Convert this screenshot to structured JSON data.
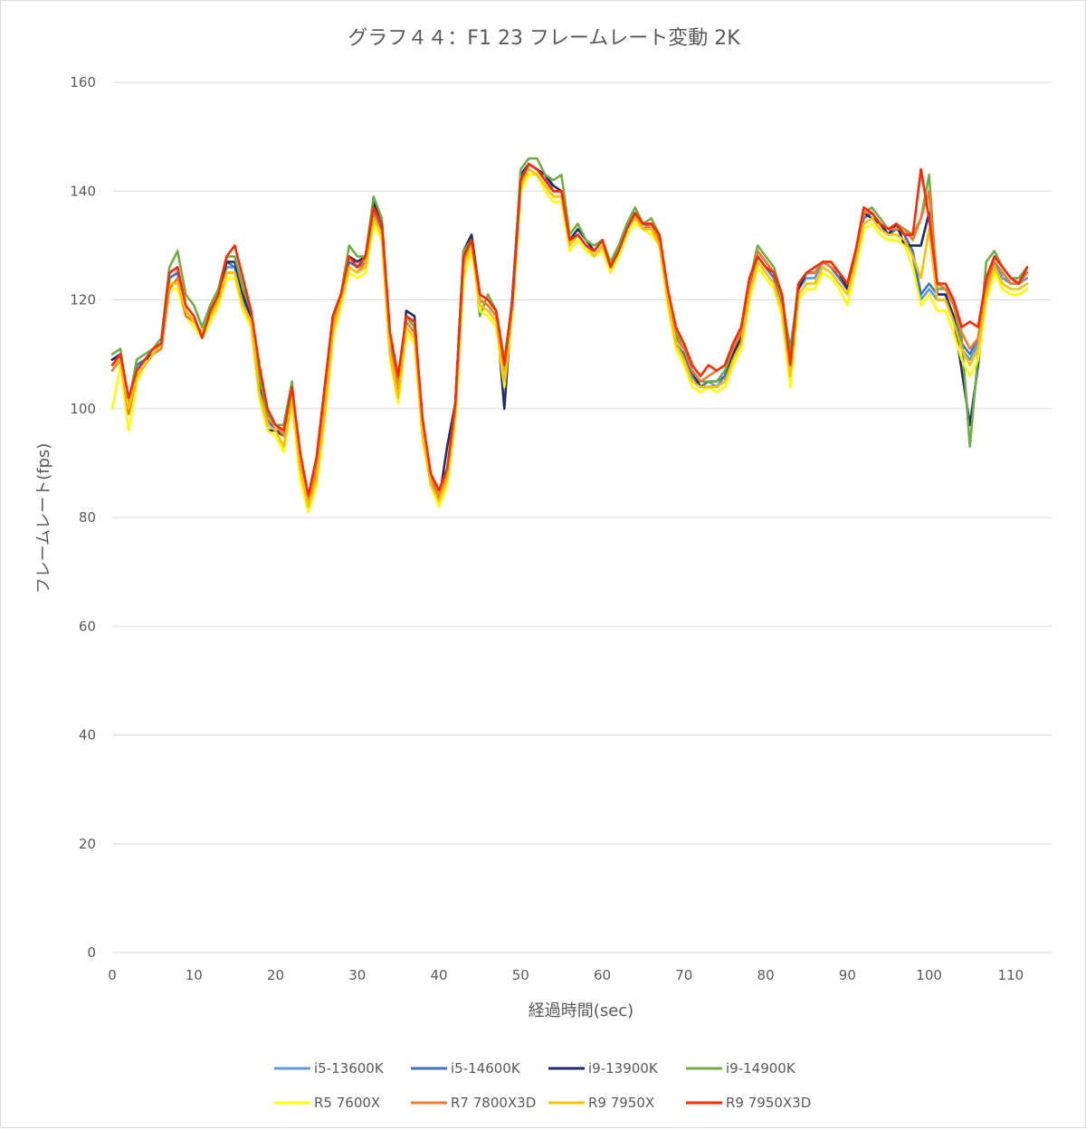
{
  "chart_data": {
    "type": "line",
    "title": "グラフ４４：F1 23 フレームレート変動 2K",
    "xlabel": "経過時間(sec)",
    "ylabel": "フレームレート(fps)",
    "xlim": [
      0,
      115
    ],
    "ylim": [
      0,
      160
    ],
    "x_ticks": [
      0,
      10,
      20,
      30,
      40,
      50,
      60,
      70,
      80,
      90,
      100,
      110
    ],
    "y_ticks": [
      0,
      20,
      40,
      60,
      80,
      100,
      120,
      140,
      160
    ],
    "grid": "horizontal",
    "legend_position": "bottom",
    "x": [
      0,
      1,
      2,
      3,
      4,
      5,
      6,
      7,
      8,
      9,
      10,
      11,
      12,
      13,
      14,
      15,
      16,
      17,
      18,
      19,
      20,
      21,
      22,
      23,
      24,
      25,
      26,
      27,
      28,
      29,
      30,
      31,
      32,
      33,
      34,
      35,
      36,
      37,
      38,
      39,
      40,
      41,
      42,
      43,
      44,
      45,
      46,
      47,
      48,
      49,
      50,
      51,
      52,
      53,
      54,
      55,
      56,
      57,
      58,
      59,
      60,
      61,
      62,
      63,
      64,
      65,
      66,
      67,
      68,
      69,
      70,
      71,
      72,
      73,
      74,
      75,
      76,
      77,
      78,
      79,
      80,
      81,
      82,
      83,
      84,
      85,
      86,
      87,
      88,
      89,
      90,
      91,
      92,
      93,
      94,
      95,
      96,
      97,
      98,
      99,
      100,
      101,
      102,
      103,
      104,
      105,
      106,
      107,
      108,
      109,
      110,
      111,
      112
    ],
    "series": [
      {
        "name": "i5-13600K",
        "color": "#5b9bd5",
        "values": [
          109,
          110,
          100,
          108,
          109,
          110,
          112,
          124,
          125,
          118,
          116,
          114,
          117,
          120,
          126,
          126,
          120,
          116,
          104,
          98,
          96,
          95,
          103,
          90,
          83,
          88,
          100,
          115,
          120,
          127,
          126,
          127,
          136,
          133,
          112,
          104,
          116,
          114,
          96,
          87,
          84,
          87,
          100,
          128,
          131,
          120,
          119,
          117,
          106,
          120,
          142,
          145,
          144,
          142,
          140,
          140,
          130,
          132,
          130,
          128,
          130,
          126,
          129,
          133,
          135,
          134,
          133,
          130,
          120,
          112,
          110,
          106,
          104,
          105,
          104,
          106,
          110,
          113,
          122,
          128,
          126,
          124,
          119,
          110,
          122,
          124,
          124,
          127,
          126,
          124,
          122,
          128,
          135,
          136,
          134,
          132,
          133,
          132,
          128,
          120,
          122,
          120,
          120,
          116,
          111,
          109,
          112,
          122,
          127,
          124,
          123,
          123,
          124
        ]
      },
      {
        "name": "i5-14600K",
        "color": "#4472c4",
        "values": [
          109,
          110,
          101,
          108,
          109,
          110,
          112,
          124,
          125,
          118,
          116,
          114,
          117,
          121,
          127,
          126,
          120,
          117,
          104,
          98,
          96,
          95,
          104,
          89,
          83,
          89,
          101,
          116,
          121,
          127,
          126,
          127,
          137,
          133,
          112,
          103,
          117,
          115,
          96,
          87,
          84,
          88,
          101,
          128,
          131,
          120,
          119,
          117,
          106,
          121,
          142,
          145,
          144,
          143,
          140,
          140,
          131,
          132,
          130,
          129,
          131,
          126,
          129,
          133,
          136,
          134,
          134,
          131,
          121,
          112,
          110,
          106,
          104,
          105,
          105,
          106,
          111,
          114,
          123,
          128,
          126,
          124,
          120,
          111,
          122,
          125,
          125,
          127,
          126,
          124,
          122,
          128,
          135,
          136,
          134,
          132,
          133,
          132,
          129,
          121,
          123,
          121,
          121,
          117,
          112,
          110,
          113,
          123,
          127,
          125,
          123,
          123,
          125
        ]
      },
      {
        "name": "i9-13900K",
        "color": "#1f2d6b",
        "values": [
          109,
          110,
          100,
          107,
          109,
          110,
          112,
          125,
          126,
          118,
          116,
          114,
          117,
          121,
          127,
          127,
          121,
          117,
          104,
          96,
          96,
          95,
          104,
          88,
          82,
          90,
          102,
          117,
          121,
          128,
          127,
          128,
          138,
          134,
          111,
          102,
          118,
          117,
          96,
          86,
          83,
          93,
          101,
          129,
          132,
          121,
          120,
          118,
          100,
          121,
          143,
          145,
          144,
          143,
          141,
          140,
          131,
          133,
          131,
          129,
          131,
          126,
          130,
          133,
          136,
          134,
          134,
          131,
          120,
          113,
          111,
          107,
          104,
          104,
          104,
          105,
          110,
          113,
          122,
          129,
          127,
          125,
          120,
          108,
          122,
          125,
          125,
          127,
          126,
          125,
          122,
          128,
          136,
          135,
          134,
          132,
          134,
          130,
          130,
          130,
          136,
          121,
          121,
          117,
          107,
          97,
          108,
          124,
          128,
          126,
          124,
          123,
          126
        ]
      },
      {
        "name": "i9-14900K",
        "color": "#70ad47",
        "values": [
          110,
          111,
          101,
          109,
          110,
          111,
          113,
          126,
          129,
          121,
          119,
          115,
          119,
          122,
          128,
          128,
          122,
          118,
          106,
          99,
          97,
          97,
          105,
          88,
          82,
          89,
          101,
          117,
          121,
          130,
          128,
          128,
          139,
          135,
          114,
          105,
          117,
          115,
          97,
          88,
          85,
          88,
          100,
          129,
          131,
          117,
          121,
          118,
          109,
          120,
          144,
          146,
          146,
          143,
          142,
          143,
          132,
          134,
          131,
          130,
          131,
          127,
          130,
          134,
          137,
          134,
          135,
          132,
          122,
          114,
          111,
          107,
          105,
          105,
          105,
          107,
          111,
          114,
          123,
          130,
          128,
          126,
          121,
          110,
          123,
          125,
          126,
          127,
          127,
          125,
          123,
          129,
          136,
          137,
          135,
          133,
          134,
          133,
          132,
          135,
          143,
          122,
          122,
          119,
          113,
          93,
          110,
          127,
          129,
          126,
          124,
          124,
          126
        ]
      },
      {
        "name": "R5 7600X",
        "color": "#ffff00",
        "values": [
          100,
          108,
          96,
          105,
          108,
          110,
          112,
          122,
          122,
          117,
          115,
          113,
          116,
          119,
          124,
          124,
          118,
          115,
          102,
          96,
          95,
          92,
          101,
          87,
          81,
          86,
          98,
          113,
          119,
          125,
          124,
          125,
          134,
          131,
          109,
          101,
          114,
          112,
          94,
          86,
          82,
          86,
          98,
          124,
          129,
          118,
          117,
          115,
          104,
          118,
          140,
          143,
          143,
          140,
          138,
          138,
          129,
          131,
          129,
          128,
          129,
          125,
          128,
          132,
          134,
          133,
          132,
          130,
          119,
          111,
          108,
          104,
          103,
          104,
          103,
          104,
          108,
          111,
          120,
          126,
          124,
          122,
          117,
          104,
          120,
          122,
          122,
          125,
          124,
          122,
          119,
          126,
          133,
          134,
          132,
          131,
          131,
          130,
          126,
          119,
          121,
          118,
          118,
          114,
          109,
          106,
          109,
          120,
          125,
          122,
          121,
          121,
          122
        ]
      },
      {
        "name": "R7 7800X3D",
        "color": "#ed7d31",
        "values": [
          107,
          109,
          99,
          106,
          108,
          110,
          111,
          122,
          124,
          117,
          116,
          114,
          117,
          120,
          125,
          125,
          119,
          116,
          103,
          98,
          97,
          95,
          103,
          90,
          83,
          89,
          101,
          116,
          120,
          126,
          125,
          127,
          136,
          132,
          111,
          104,
          116,
          114,
          96,
          87,
          84,
          88,
          101,
          127,
          130,
          120,
          119,
          117,
          106,
          120,
          141,
          145,
          144,
          142,
          140,
          140,
          131,
          132,
          130,
          129,
          131,
          126,
          129,
          133,
          136,
          133,
          134,
          131,
          121,
          113,
          111,
          107,
          105,
          106,
          107,
          108,
          111,
          114,
          123,
          129,
          127,
          125,
          120,
          107,
          123,
          125,
          125,
          127,
          126,
          125,
          123,
          129,
          136,
          136,
          134,
          133,
          133,
          133,
          131,
          135,
          140,
          123,
          122,
          119,
          114,
          111,
          113,
          123,
          127,
          125,
          123,
          123,
          125
        ]
      },
      {
        "name": "R9 7950X",
        "color": "#ffc000",
        "values": [
          108,
          109,
          100,
          106,
          108,
          110,
          112,
          123,
          123,
          118,
          116,
          114,
          117,
          120,
          125,
          125,
          119,
          116,
          103,
          97,
          96,
          93,
          102,
          89,
          82,
          87,
          99,
          114,
          120,
          126,
          125,
          126,
          135,
          132,
          110,
          102,
          115,
          113,
          95,
          86,
          83,
          87,
          99,
          126,
          130,
          119,
          118,
          116,
          105,
          119,
          141,
          144,
          143,
          141,
          139,
          139,
          130,
          132,
          130,
          128,
          130,
          126,
          129,
          133,
          135,
          133,
          133,
          130,
          120,
          112,
          109,
          105,
          104,
          104,
          104,
          105,
          109,
          112,
          121,
          127,
          125,
          123,
          118,
          106,
          121,
          123,
          123,
          126,
          125,
          123,
          121,
          127,
          134,
          135,
          133,
          132,
          132,
          131,
          128,
          124,
          133,
          120,
          120,
          116,
          111,
          108,
          111,
          121,
          126,
          123,
          122,
          122,
          123
        ]
      },
      {
        "name": "R9 7950X3D",
        "color": "#ff2a00",
        "values": [
          108,
          110,
          102,
          107,
          109,
          111,
          112,
          125,
          126,
          119,
          117,
          113,
          118,
          121,
          128,
          130,
          124,
          118,
          108,
          100,
          97,
          96,
          104,
          92,
          84,
          91,
          104,
          117,
          121,
          128,
          126,
          128,
          137,
          134,
          114,
          106,
          117,
          116,
          98,
          88,
          85,
          89,
          101,
          128,
          131,
          121,
          120,
          118,
          108,
          120,
          142,
          145,
          144,
          142,
          140,
          140,
          131,
          132,
          130,
          129,
          131,
          126,
          129,
          133,
          136,
          134,
          134,
          132,
          122,
          115,
          112,
          108,
          106,
          108,
          107,
          108,
          112,
          115,
          124,
          128,
          126,
          125,
          121,
          108,
          123,
          125,
          126,
          127,
          127,
          125,
          123,
          129,
          137,
          136,
          134,
          133,
          134,
          132,
          132,
          144,
          135,
          123,
          123,
          120,
          115,
          116,
          115,
          124,
          128,
          126,
          124,
          123,
          126
        ]
      }
    ]
  }
}
